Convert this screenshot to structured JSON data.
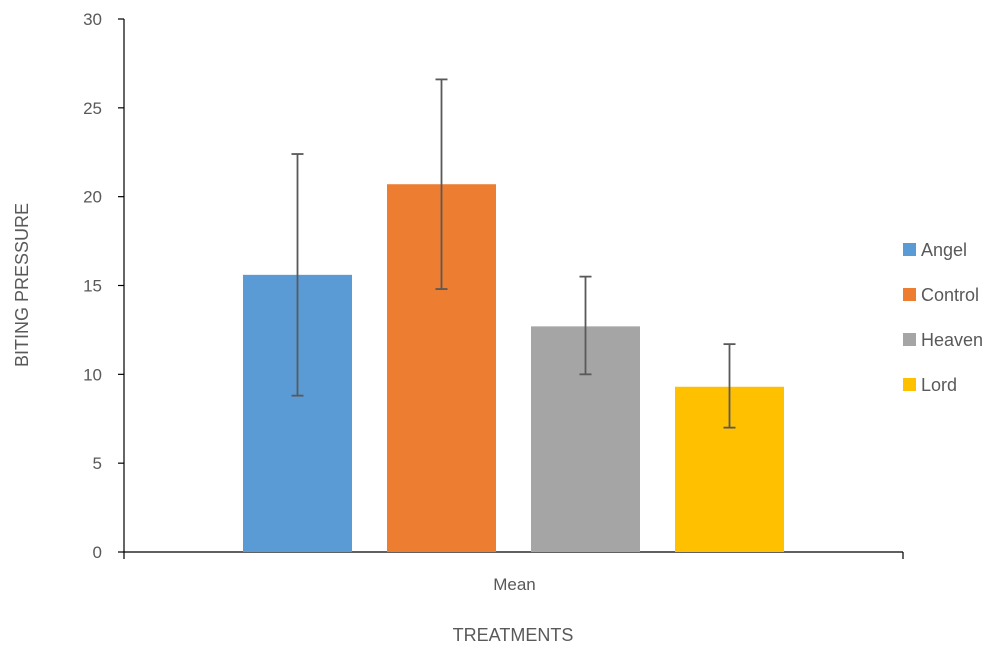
{
  "chart_data": {
    "type": "bar",
    "categories": [
      "Mean"
    ],
    "series": [
      {
        "name": "Angel",
        "values": [
          15.6
        ],
        "error_low": [
          8.8
        ],
        "error_high": [
          22.4
        ],
        "color": "#5B9BD5"
      },
      {
        "name": "Control",
        "values": [
          20.7
        ],
        "error_low": [
          14.8
        ],
        "error_high": [
          26.6
        ],
        "color": "#ED7D31"
      },
      {
        "name": "Heaven",
        "values": [
          12.7
        ],
        "error_low": [
          10.0
        ],
        "error_high": [
          15.5
        ],
        "color": "#A5A5A5"
      },
      {
        "name": "Lord",
        "values": [
          9.3
        ],
        "error_low": [
          7.0
        ],
        "error_high": [
          11.7
        ],
        "color": "#FFC000"
      }
    ],
    "title": "",
    "xlabel": "TREATMENTS",
    "ylabel": "BITING PRESSURE",
    "ylim": [
      0,
      30
    ],
    "yticks": [
      "0",
      "5",
      "10",
      "15",
      "20",
      "25",
      "30"
    ],
    "grid": false,
    "legend": "right",
    "colors": {
      "axis": "#000000",
      "text": "#595959",
      "error_bar": "#595959"
    }
  }
}
